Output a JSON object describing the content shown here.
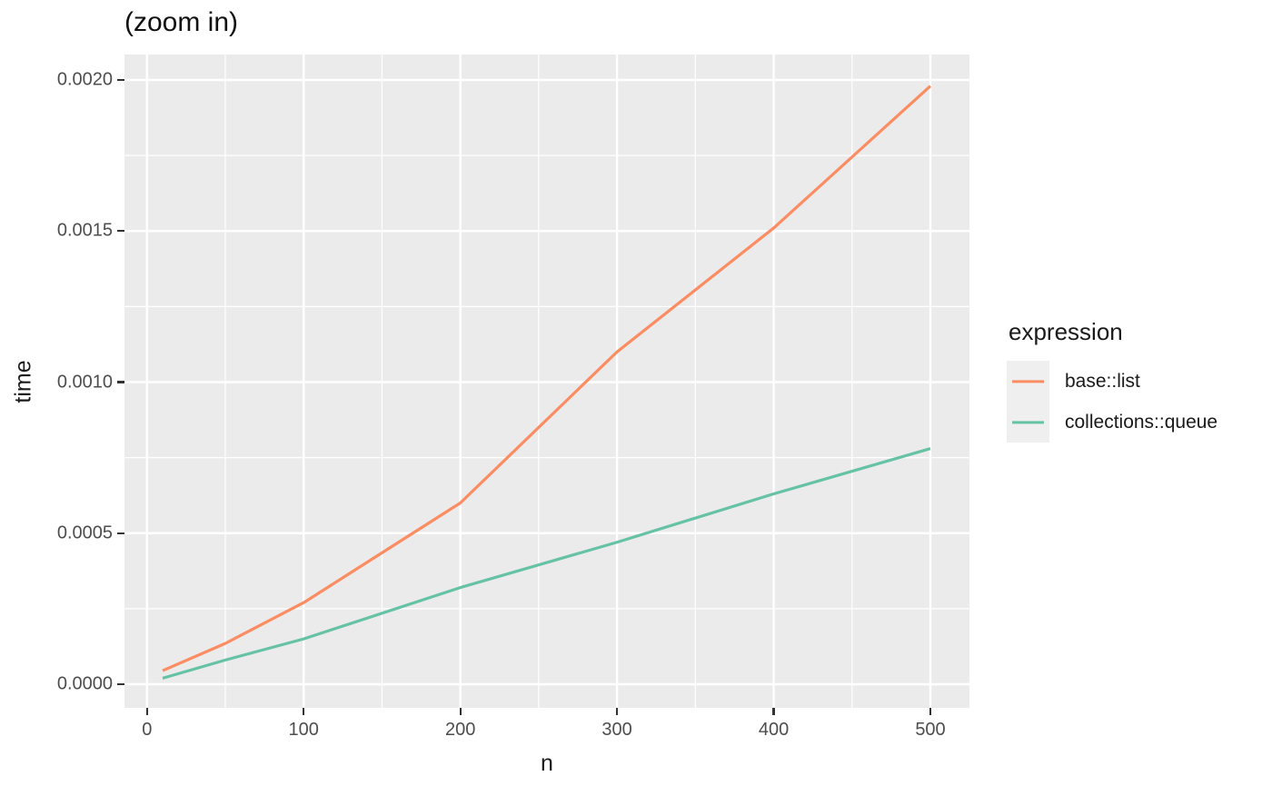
{
  "title": "(zoom in)",
  "axes": {
    "x": {
      "label": "n"
    },
    "y": {
      "label": "time"
    }
  },
  "legend": {
    "title": "expression",
    "items": [
      {
        "label": "base::list",
        "color": "#FC8D62"
      },
      {
        "label": "collections::queue",
        "color": "#66C2A5"
      }
    ]
  },
  "colors": {
    "panel_background": "#EBEBEB",
    "gridline": "#FFFFFF",
    "tick_text": "#4D4D4D",
    "axis_title_text": "#1a1a1a",
    "tick_mark": "#333333",
    "legend_key_background": "#EFEFEF",
    "series_orange": "#FC8D62",
    "series_teal": "#66C2A5"
  },
  "chart_data": {
    "type": "line",
    "title": "(zoom in)",
    "xlabel": "n",
    "ylabel": "time",
    "x": [
      10,
      50,
      100,
      200,
      300,
      400,
      500
    ],
    "series": [
      {
        "name": "base::list",
        "color": "#FC8D62",
        "values": [
          4.5e-05,
          0.000135,
          0.00027,
          0.0006,
          0.0011,
          0.00151,
          0.00198
        ]
      },
      {
        "name": "collections::queue",
        "color": "#66C2A5",
        "values": [
          2e-05,
          8e-05,
          0.00015,
          0.00032,
          0.00047,
          0.00063,
          0.00078
        ]
      }
    ],
    "x_ticks": {
      "values": [
        0,
        100,
        200,
        300,
        400,
        500
      ],
      "labels": [
        "0",
        "100",
        "200",
        "300",
        "400",
        "500"
      ]
    },
    "y_ticks": {
      "values": [
        0,
        0.0005,
        0.001,
        0.0015,
        0.002
      ],
      "labels": [
        "0.0000",
        "0.0005",
        "0.0010",
        "0.0015",
        "0.0020"
      ]
    },
    "xlim": [
      0,
      500
    ],
    "ylim": [
      0,
      0.002
    ],
    "grid": "major+minor white on grey panel",
    "legend_position": "right"
  }
}
